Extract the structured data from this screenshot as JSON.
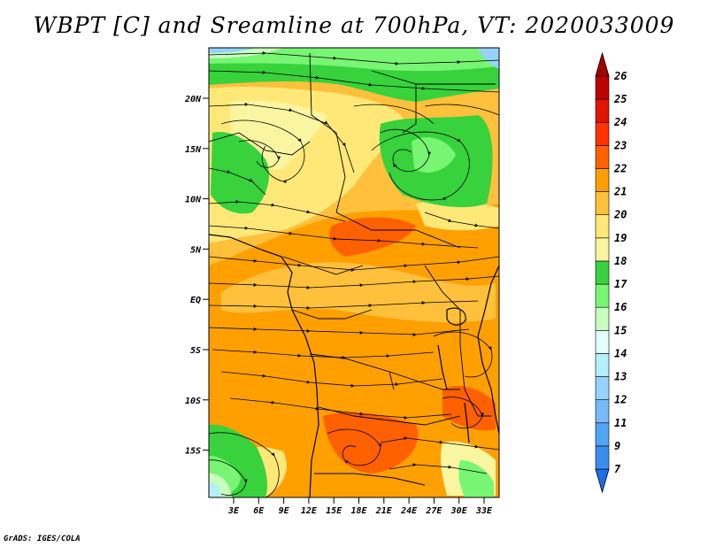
{
  "title": "WBPT [C] and Sreamline at 700hPa, VT: 2020033009",
  "credit": "GrADS: IGES/COLA",
  "map": {
    "lat_ticks": [
      "20N",
      "15N",
      "10N",
      "5N",
      "EQ",
      "5S",
      "10S",
      "15S"
    ],
    "lon_ticks": [
      "3E",
      "6E",
      "9E",
      "12E",
      "15E",
      "18E",
      "21E",
      "24E",
      "27E",
      "30E",
      "33E"
    ]
  },
  "colorbar": {
    "labels": [
      "7",
      "9",
      "11",
      "12",
      "13",
      "14",
      "15",
      "16",
      "17",
      "18",
      "19",
      "20",
      "21",
      "22",
      "23",
      "24",
      "25",
      "26"
    ],
    "colors": [
      "#1e6eeb",
      "#3c8cf0",
      "#50a5f5",
      "#78b9fa",
      "#96d2fa",
      "#b4f0fa",
      "#e1ffff",
      "#c8ffbe",
      "#78f573",
      "#37d23c",
      "#faf5a0",
      "#ffe878",
      "#ffc03c",
      "#ffa000",
      "#ff6000",
      "#ff3200",
      "#e11400",
      "#c00000",
      "#a50000"
    ]
  }
}
